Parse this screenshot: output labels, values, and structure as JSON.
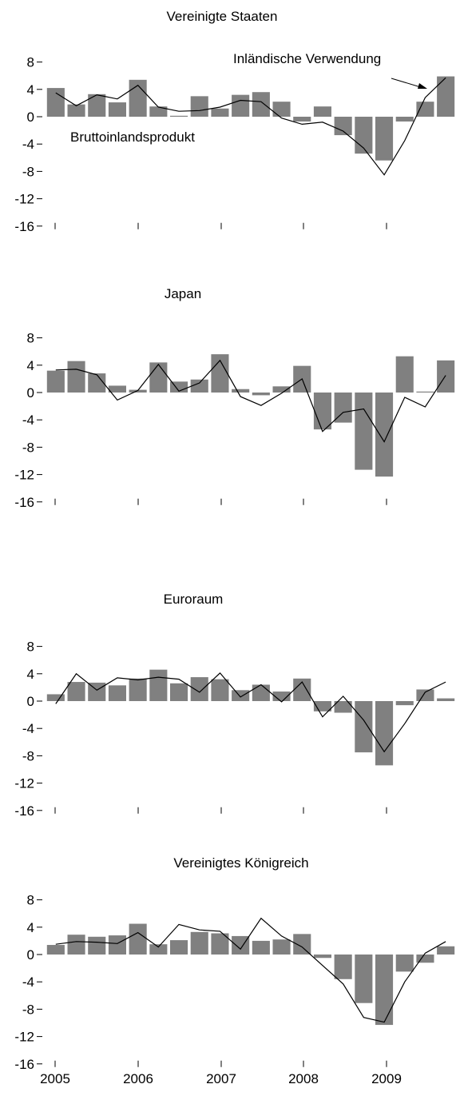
{
  "chart_data": [
    {
      "type": "bar",
      "title": "Vereinigte Staaten",
      "yticks": [
        8,
        4,
        0,
        -4,
        -8,
        -12,
        -16
      ],
      "ylim": [
        -16,
        8
      ],
      "x_tick_labels": [],
      "series": [
        {
          "name": "Bruttoinlandsprodukt",
          "type": "bar",
          "color": "#808080",
          "values": [
            4.2,
            1.8,
            3.3,
            2.1,
            5.4,
            1.5,
            0.1,
            3.0,
            1.2,
            3.2,
            3.6,
            2.2,
            -0.7,
            1.5,
            -2.7,
            -5.4,
            -6.4,
            -0.7,
            2.2,
            5.9
          ]
        },
        {
          "name": "Inländische Verwendung",
          "type": "line",
          "color": "#000000",
          "values": [
            3.5,
            1.6,
            3.2,
            2.6,
            4.6,
            1.4,
            0.8,
            0.9,
            1.4,
            2.4,
            2.2,
            -0.2,
            -1.1,
            -0.8,
            -2.1,
            -4.6,
            -8.5,
            -3.5,
            2.8,
            5.7
          ]
        }
      ],
      "annotations": [
        "Inländische Verwendung",
        "Bruttoinlandsprodukt"
      ]
    },
    {
      "type": "bar",
      "title": "Japan",
      "yticks": [
        8,
        4,
        0,
        -4,
        -8,
        -12,
        -16
      ],
      "ylim": [
        -16,
        8
      ],
      "x_tick_labels": [],
      "series": [
        {
          "name": "Bruttoinlandsprodukt",
          "type": "bar",
          "color": "#808080",
          "values": [
            3.2,
            4.6,
            2.8,
            1.0,
            0.4,
            4.4,
            1.6,
            1.9,
            5.6,
            0.5,
            -0.4,
            0.9,
            3.9,
            -5.4,
            -4.4,
            -11.3,
            -12.3,
            5.3,
            0.1,
            4.7
          ]
        },
        {
          "name": "Inländische Verwendung",
          "type": "line",
          "color": "#000000",
          "values": [
            3.3,
            3.4,
            2.6,
            -1.1,
            0.3,
            4.1,
            0.2,
            1.4,
            4.7,
            -0.6,
            -1.9,
            -0.1,
            2.0,
            -5.7,
            -2.9,
            -2.4,
            -7.2,
            -0.7,
            -2.1,
            2.5
          ]
        }
      ],
      "annotations": []
    },
    {
      "type": "bar",
      "title": "Euroraum",
      "yticks": [
        8,
        4,
        0,
        -4,
        -8,
        -12,
        -16
      ],
      "ylim": [
        -16,
        8
      ],
      "x_tick_labels": [],
      "series": [
        {
          "name": "Bruttoinlandsprodukt",
          "type": "bar",
          "color": "#808080",
          "values": [
            1.0,
            2.8,
            2.7,
            2.3,
            3.3,
            4.6,
            2.6,
            3.5,
            3.2,
            1.6,
            2.4,
            1.4,
            3.3,
            -1.5,
            -1.7,
            -7.5,
            -9.4,
            -0.6,
            1.7,
            0.4
          ]
        },
        {
          "name": "Inländische Verwendung",
          "type": "line",
          "color": "#000000",
          "values": [
            -0.4,
            4.0,
            1.6,
            3.4,
            3.1,
            3.5,
            3.2,
            1.3,
            4.1,
            0.6,
            2.4,
            -0.1,
            2.8,
            -2.3,
            0.7,
            -2.8,
            -7.4,
            -3.3,
            1.3,
            2.8
          ]
        }
      ],
      "annotations": []
    },
    {
      "type": "bar",
      "title": "Vereinigtes Königreich",
      "yticks": [
        8,
        4,
        0,
        -4,
        -8,
        -12,
        -16
      ],
      "ylim": [
        -16,
        8
      ],
      "x_tick_labels": [
        "2005",
        "2006",
        "2007",
        "2008",
        "2009"
      ],
      "series": [
        {
          "name": "Bruttoinlandsprodukt",
          "type": "bar",
          "color": "#808080",
          "values": [
            1.4,
            2.9,
            2.6,
            2.8,
            4.5,
            1.5,
            2.1,
            3.3,
            3.1,
            2.7,
            2.0,
            2.2,
            3.0,
            -0.5,
            -3.6,
            -7.1,
            -10.3,
            -2.5,
            -1.2,
            1.2
          ]
        },
        {
          "name": "Inländische Verwendung",
          "type": "line",
          "color": "#000000",
          "values": [
            1.5,
            1.9,
            1.8,
            1.6,
            3.2,
            1.1,
            4.4,
            3.6,
            3.4,
            0.8,
            5.3,
            2.7,
            1.1,
            -1.6,
            -4.3,
            -9.2,
            -9.9,
            -4.0,
            0.2,
            1.9
          ]
        }
      ],
      "annotations": []
    }
  ]
}
